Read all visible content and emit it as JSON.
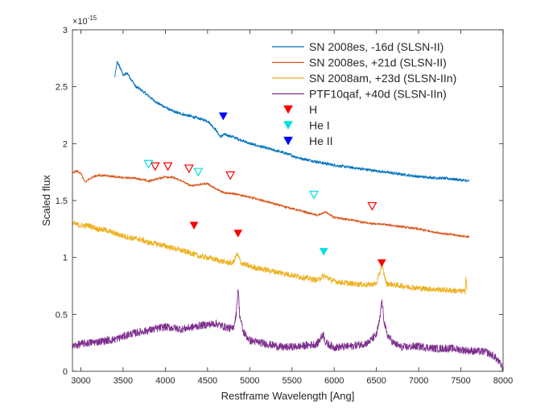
{
  "chart_data": {
    "type": "line",
    "title": "",
    "xlabel": "Restframe Wavelength [Ang]",
    "ylabel": "Scaled flux",
    "xlim": [
      2900,
      8000
    ],
    "ylim": [
      0,
      3
    ],
    "y_multiplier_label": "×10",
    "y_multiplier_exp": "-15",
    "x_ticks": [
      3000,
      3500,
      4000,
      4500,
      5000,
      5500,
      6000,
      6500,
      7000,
      7500,
      8000
    ],
    "y_ticks": [
      0,
      0.5,
      1,
      1.5,
      2,
      2.5,
      3
    ],
    "x_tick_labels": [
      "3000",
      "3500",
      "4000",
      "4500",
      "5000",
      "5500",
      "6000",
      "6500",
      "7000",
      "7500",
      "8000"
    ],
    "y_tick_labels": [
      "0",
      "0.5",
      "1",
      "1.5",
      "2",
      "2.5",
      "3"
    ],
    "grid": false,
    "legend_position": "top-right",
    "series": [
      {
        "name": "SN 2008es, -16d (SLSN-II)",
        "color": "#0072BD",
        "noise": 0.012,
        "x": [
          3400,
          3430,
          3470,
          3500,
          3550,
          3600,
          3650,
          3700,
          3800,
          3900,
          4000,
          4100,
          4200,
          4300,
          4400,
          4500,
          4600,
          4650,
          4700,
          4800,
          4900,
          5000,
          5200,
          5400,
          5600,
          5800,
          6000,
          6200,
          6400,
          6600,
          6800,
          7000,
          7200,
          7400,
          7600
        ],
        "y": [
          2.58,
          2.72,
          2.66,
          2.6,
          2.62,
          2.56,
          2.5,
          2.48,
          2.42,
          2.36,
          2.32,
          2.28,
          2.26,
          2.24,
          2.22,
          2.2,
          2.12,
          2.06,
          2.08,
          2.06,
          2.03,
          2.0,
          1.96,
          1.92,
          1.87,
          1.84,
          1.81,
          1.79,
          1.77,
          1.75,
          1.73,
          1.71,
          1.7,
          1.69,
          1.67
        ]
      },
      {
        "name": "SN 2008es, +21d (SLSN-II)",
        "color": "#D95319",
        "noise": 0.008,
        "x": [
          2900,
          2950,
          3000,
          3050,
          3100,
          3150,
          3200,
          3300,
          3400,
          3500,
          3600,
          3700,
          3800,
          3900,
          4000,
          4100,
          4200,
          4300,
          4400,
          4500,
          4600,
          4700,
          4800,
          5000,
          5200,
          5400,
          5600,
          5800,
          5900,
          6000,
          6200,
          6400,
          6600,
          6800,
          7000,
          7200,
          7400,
          7600
        ],
        "y": [
          1.74,
          1.76,
          1.74,
          1.66,
          1.69,
          1.71,
          1.72,
          1.72,
          1.71,
          1.7,
          1.7,
          1.69,
          1.67,
          1.69,
          1.71,
          1.7,
          1.67,
          1.63,
          1.64,
          1.65,
          1.6,
          1.57,
          1.56,
          1.53,
          1.49,
          1.45,
          1.41,
          1.37,
          1.4,
          1.35,
          1.33,
          1.3,
          1.29,
          1.27,
          1.25,
          1.22,
          1.2,
          1.18
        ]
      },
      {
        "name": "SN 2008am, +23d (SLSN-IIn)",
        "color": "#EDB120",
        "noise": 0.025,
        "x": [
          2900,
          3000,
          3100,
          3200,
          3300,
          3400,
          3500,
          3600,
          3700,
          3800,
          3900,
          4000,
          4100,
          4200,
          4300,
          4400,
          4500,
          4600,
          4700,
          4800,
          4850,
          4900,
          5000,
          5200,
          5400,
          5600,
          5800,
          5880,
          6000,
          6200,
          6400,
          6500,
          6563,
          6620,
          6800,
          7000,
          7200,
          7400,
          7550,
          7560,
          7575
        ],
        "y": [
          1.3,
          1.28,
          1.28,
          1.25,
          1.24,
          1.21,
          1.19,
          1.17,
          1.16,
          1.13,
          1.12,
          1.1,
          1.08,
          1.06,
          1.04,
          1.01,
          1.0,
          0.98,
          0.96,
          0.95,
          1.03,
          0.95,
          0.92,
          0.89,
          0.86,
          0.83,
          0.8,
          0.84,
          0.79,
          0.77,
          0.76,
          0.77,
          0.93,
          0.77,
          0.75,
          0.73,
          0.72,
          0.71,
          0.7,
          0.84,
          0.7
        ]
      },
      {
        "name": "PTF10qaf, +40d (SLSN-IIn)",
        "color": "#7E2F8E",
        "noise": 0.035,
        "x": [
          2900,
          3000,
          3200,
          3400,
          3600,
          3800,
          4000,
          4200,
          4400,
          4600,
          4700,
          4800,
          4840,
          4861,
          4880,
          4920,
          5000,
          5200,
          5400,
          5600,
          5800,
          5870,
          5900,
          6000,
          6200,
          6400,
          6500,
          6540,
          6563,
          6590,
          6620,
          6700,
          6800,
          7000,
          7200,
          7400,
          7600,
          7800,
          7900,
          8000
        ],
        "y": [
          0.22,
          0.24,
          0.26,
          0.28,
          0.33,
          0.36,
          0.39,
          0.37,
          0.4,
          0.42,
          0.39,
          0.37,
          0.5,
          0.75,
          0.5,
          0.35,
          0.27,
          0.24,
          0.21,
          0.22,
          0.24,
          0.33,
          0.25,
          0.21,
          0.22,
          0.25,
          0.32,
          0.45,
          0.62,
          0.45,
          0.33,
          0.25,
          0.21,
          0.22,
          0.2,
          0.2,
          0.18,
          0.17,
          0.13,
          0.03
        ]
      }
    ],
    "markers": [
      {
        "series": "H",
        "style": "open",
        "color": "#FF0000",
        "points": [
          [
            3880,
            1.8
          ],
          [
            4030,
            1.8
          ],
          [
            4280,
            1.78
          ],
          [
            4770,
            1.72
          ],
          [
            6450,
            1.45
          ]
        ]
      },
      {
        "series": "He I",
        "style": "open",
        "color": "#00E0E0",
        "points": [
          [
            3800,
            1.82
          ],
          [
            4390,
            1.75
          ],
          [
            5760,
            1.55
          ]
        ]
      },
      {
        "series": "H",
        "style": "filled",
        "color": "#FF0000",
        "points": [
          [
            4340,
            1.28
          ],
          [
            4861,
            1.21
          ],
          [
            6563,
            0.95
          ]
        ]
      },
      {
        "series": "He I",
        "style": "filled",
        "color": "#00E0E0",
        "points": [
          [
            5876,
            1.05
          ]
        ]
      },
      {
        "series": "He II",
        "style": "filled",
        "color": "#0000FF",
        "points": [
          [
            4686,
            2.24
          ]
        ]
      }
    ],
    "legend": [
      {
        "label": "SN 2008es, -16d (SLSN-II)",
        "kind": "line",
        "color": "#0072BD"
      },
      {
        "label": "SN 2008es, +21d (SLSN-II)",
        "kind": "line",
        "color": "#D95319"
      },
      {
        "label": "SN 2008am, +23d (SLSN-IIn)",
        "kind": "line",
        "color": "#EDB120"
      },
      {
        "label": "PTF10qaf, +40d (SLSN-IIn)",
        "kind": "line",
        "color": "#7E2F8E"
      },
      {
        "label": "H",
        "kind": "triangle",
        "color": "#FF0000"
      },
      {
        "label": "He I",
        "kind": "triangle",
        "color": "#00E0E0"
      },
      {
        "label": "He II",
        "kind": "triangle",
        "color": "#0000FF"
      }
    ]
  }
}
